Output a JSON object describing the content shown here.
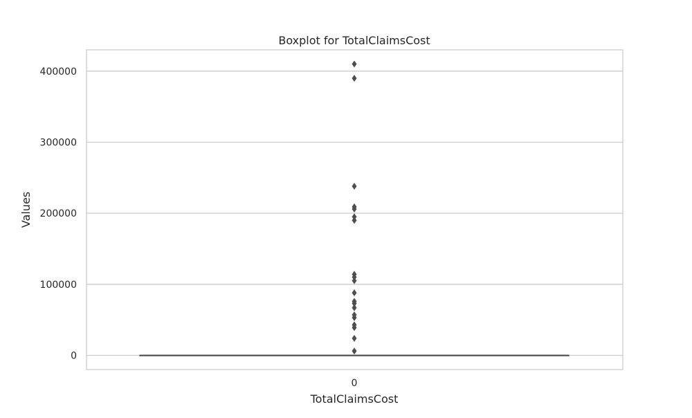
{
  "chart_data": {
    "type": "box",
    "title": "Boxplot for TotalClaimsCost",
    "xlabel": "TotalClaimsCost",
    "ylabel": "Values",
    "categories": [
      "0"
    ],
    "ylim": [
      -20000,
      430000
    ],
    "yticks": [
      0,
      100000,
      200000,
      300000,
      400000
    ],
    "ytick_labels": [
      "0",
      "100000",
      "200000",
      "300000",
      "400000"
    ],
    "grid": true,
    "box": {
      "q1": 0,
      "median": 0,
      "q3": 0,
      "whisker_low": 0,
      "whisker_high": 0
    },
    "outliers": [
      410000,
      390000,
      238000,
      209000,
      206000,
      195000,
      190000,
      114000,
      110000,
      105000,
      88000,
      76000,
      73000,
      67000,
      57000,
      53000,
      43000,
      39000,
      24000,
      6000
    ],
    "colors": {
      "grid": "#cccccc",
      "frame": "#cccccc",
      "box": "#4d4d4d",
      "flier": "#4d4d4d"
    }
  }
}
